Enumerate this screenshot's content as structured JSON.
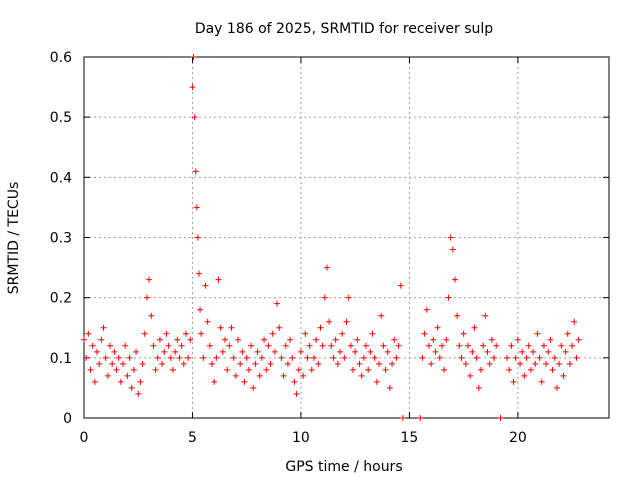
{
  "chart_data": {
    "type": "scatter",
    "title": "Day 186 of 2025, SRMTID for receiver sulp",
    "xlabel": "GPS time / hours",
    "ylabel": "SRMTID / TECUs",
    "xlim": [
      0,
      24.2
    ],
    "ylim": [
      0,
      0.6
    ],
    "xticks": [
      0,
      5,
      10,
      15,
      20
    ],
    "xtick_labels": [
      "0",
      "5",
      "10",
      "15",
      "20"
    ],
    "yticks": [
      0,
      0.1,
      0.2,
      0.3,
      0.4,
      0.5,
      0.6
    ],
    "ytick_labels": [
      "0",
      "0.1",
      "0.2",
      "0.3",
      "0.4",
      "0.5",
      "0.6"
    ],
    "grid": true,
    "marker": "+",
    "color": "#ff0000",
    "series": [
      {
        "name": "SRMTID",
        "points": [
          [
            0.0,
            0.13
          ],
          [
            0.1,
            0.1
          ],
          [
            0.2,
            0.14
          ],
          [
            0.3,
            0.08
          ],
          [
            0.4,
            0.12
          ],
          [
            0.5,
            0.06
          ],
          [
            0.6,
            0.11
          ],
          [
            0.7,
            0.09
          ],
          [
            0.8,
            0.13
          ],
          [
            0.9,
            0.15
          ],
          [
            1.0,
            0.1
          ],
          [
            1.1,
            0.07
          ],
          [
            1.2,
            0.12
          ],
          [
            1.3,
            0.09
          ],
          [
            1.4,
            0.11
          ],
          [
            1.5,
            0.08
          ],
          [
            1.6,
            0.1
          ],
          [
            1.7,
            0.06
          ],
          [
            1.8,
            0.09
          ],
          [
            1.9,
            0.12
          ],
          [
            2.0,
            0.07
          ],
          [
            2.1,
            0.1
          ],
          [
            2.2,
            0.05
          ],
          [
            2.3,
            0.08
          ],
          [
            2.4,
            0.11
          ],
          [
            2.5,
            0.04
          ],
          [
            2.6,
            0.06
          ],
          [
            2.7,
            0.09
          ],
          [
            2.8,
            0.14
          ],
          [
            2.9,
            0.2
          ],
          [
            3.0,
            0.23
          ],
          [
            3.1,
            0.17
          ],
          [
            3.2,
            0.12
          ],
          [
            3.3,
            0.08
          ],
          [
            3.4,
            0.1
          ],
          [
            3.5,
            0.13
          ],
          [
            3.6,
            0.09
          ],
          [
            3.7,
            0.11
          ],
          [
            3.8,
            0.14
          ],
          [
            3.9,
            0.12
          ],
          [
            4.0,
            0.1
          ],
          [
            4.1,
            0.08
          ],
          [
            4.2,
            0.11
          ],
          [
            4.3,
            0.13
          ],
          [
            4.4,
            0.1
          ],
          [
            4.5,
            0.12
          ],
          [
            4.6,
            0.09
          ],
          [
            4.7,
            0.14
          ],
          [
            4.8,
            0.1
          ],
          [
            4.9,
            0.13
          ],
          [
            5.0,
            0.55
          ],
          [
            5.05,
            0.6
          ],
          [
            5.1,
            0.5
          ],
          [
            5.15,
            0.41
          ],
          [
            5.2,
            0.35
          ],
          [
            5.25,
            0.3
          ],
          [
            5.3,
            0.24
          ],
          [
            5.35,
            0.18
          ],
          [
            5.4,
            0.14
          ],
          [
            5.5,
            0.1
          ],
          [
            5.6,
            0.22
          ],
          [
            5.7,
            0.16
          ],
          [
            5.8,
            0.12
          ],
          [
            5.9,
            0.09
          ],
          [
            6.0,
            0.06
          ],
          [
            6.1,
            0.1
          ],
          [
            6.2,
            0.23
          ],
          [
            6.3,
            0.15
          ],
          [
            6.4,
            0.11
          ],
          [
            6.5,
            0.13
          ],
          [
            6.6,
            0.08
          ],
          [
            6.7,
            0.12
          ],
          [
            6.8,
            0.15
          ],
          [
            6.9,
            0.1
          ],
          [
            7.0,
            0.07
          ],
          [
            7.1,
            0.13
          ],
          [
            7.2,
            0.09
          ],
          [
            7.3,
            0.11
          ],
          [
            7.4,
            0.06
          ],
          [
            7.5,
            0.1
          ],
          [
            7.6,
            0.08
          ],
          [
            7.7,
            0.12
          ],
          [
            7.8,
            0.05
          ],
          [
            7.9,
            0.09
          ],
          [
            8.0,
            0.11
          ],
          [
            8.1,
            0.07
          ],
          [
            8.2,
            0.1
          ],
          [
            8.3,
            0.13
          ],
          [
            8.4,
            0.08
          ],
          [
            8.5,
            0.12
          ],
          [
            8.6,
            0.09
          ],
          [
            8.7,
            0.14
          ],
          [
            8.8,
            0.11
          ],
          [
            8.9,
            0.19
          ],
          [
            9.0,
            0.15
          ],
          [
            9.1,
            0.1
          ],
          [
            9.2,
            0.07
          ],
          [
            9.3,
            0.12
          ],
          [
            9.4,
            0.09
          ],
          [
            9.5,
            0.13
          ],
          [
            9.6,
            0.1
          ],
          [
            9.7,
            0.06
          ],
          [
            9.8,
            0.04
          ],
          [
            9.9,
            0.08
          ],
          [
            10.0,
            0.11
          ],
          [
            10.1,
            0.07
          ],
          [
            10.2,
            0.14
          ],
          [
            10.3,
            0.1
          ],
          [
            10.4,
            0.12
          ],
          [
            10.5,
            0.08
          ],
          [
            10.6,
            0.1
          ],
          [
            10.7,
            0.13
          ],
          [
            10.8,
            0.09
          ],
          [
            10.9,
            0.15
          ],
          [
            11.0,
            0.12
          ],
          [
            11.1,
            0.2
          ],
          [
            11.2,
            0.25
          ],
          [
            11.3,
            0.16
          ],
          [
            11.4,
            0.12
          ],
          [
            11.5,
            0.1
          ],
          [
            11.6,
            0.13
          ],
          [
            11.7,
            0.09
          ],
          [
            11.8,
            0.11
          ],
          [
            11.9,
            0.14
          ],
          [
            12.0,
            0.1
          ],
          [
            12.1,
            0.16
          ],
          [
            12.2,
            0.2
          ],
          [
            12.3,
            0.12
          ],
          [
            12.4,
            0.08
          ],
          [
            12.5,
            0.11
          ],
          [
            12.6,
            0.13
          ],
          [
            12.7,
            0.09
          ],
          [
            12.8,
            0.07
          ],
          [
            12.9,
            0.1
          ],
          [
            13.0,
            0.12
          ],
          [
            13.1,
            0.08
          ],
          [
            13.2,
            0.11
          ],
          [
            13.3,
            0.14
          ],
          [
            13.4,
            0.1
          ],
          [
            13.5,
            0.06
          ],
          [
            13.6,
            0.09
          ],
          [
            13.7,
            0.17
          ],
          [
            13.8,
            0.12
          ],
          [
            13.9,
            0.08
          ],
          [
            14.0,
            0.11
          ],
          [
            14.1,
            0.05
          ],
          [
            14.2,
            0.09
          ],
          [
            14.3,
            0.13
          ],
          [
            14.4,
            0.1
          ],
          [
            14.5,
            0.12
          ],
          [
            14.6,
            0.22
          ],
          [
            14.7,
            0.0
          ],
          [
            15.5,
            0.0
          ],
          [
            15.6,
            0.1
          ],
          [
            15.7,
            0.14
          ],
          [
            15.8,
            0.18
          ],
          [
            15.9,
            0.12
          ],
          [
            16.0,
            0.09
          ],
          [
            16.1,
            0.13
          ],
          [
            16.2,
            0.11
          ],
          [
            16.3,
            0.15
          ],
          [
            16.4,
            0.1
          ],
          [
            16.5,
            0.12
          ],
          [
            16.6,
            0.08
          ],
          [
            16.7,
            0.13
          ],
          [
            16.8,
            0.2
          ],
          [
            16.9,
            0.3
          ],
          [
            17.0,
            0.28
          ],
          [
            17.1,
            0.23
          ],
          [
            17.2,
            0.17
          ],
          [
            17.3,
            0.12
          ],
          [
            17.4,
            0.1
          ],
          [
            17.5,
            0.14
          ],
          [
            17.6,
            0.09
          ],
          [
            17.7,
            0.12
          ],
          [
            17.8,
            0.07
          ],
          [
            17.9,
            0.11
          ],
          [
            18.0,
            0.15
          ],
          [
            18.1,
            0.1
          ],
          [
            18.2,
            0.05
          ],
          [
            18.3,
            0.08
          ],
          [
            18.4,
            0.12
          ],
          [
            18.5,
            0.17
          ],
          [
            18.6,
            0.11
          ],
          [
            18.7,
            0.09
          ],
          [
            18.8,
            0.13
          ],
          [
            18.9,
            0.1
          ],
          [
            19.0,
            0.12
          ],
          [
            19.2,
            0.0
          ],
          [
            19.5,
            0.1
          ],
          [
            19.6,
            0.08
          ],
          [
            19.7,
            0.12
          ],
          [
            19.8,
            0.06
          ],
          [
            19.9,
            0.1
          ],
          [
            20.0,
            0.13
          ],
          [
            20.1,
            0.09
          ],
          [
            20.2,
            0.11
          ],
          [
            20.3,
            0.07
          ],
          [
            20.4,
            0.1
          ],
          [
            20.5,
            0.12
          ],
          [
            20.6,
            0.08
          ],
          [
            20.7,
            0.11
          ],
          [
            20.8,
            0.09
          ],
          [
            20.9,
            0.14
          ],
          [
            21.0,
            0.1
          ],
          [
            21.1,
            0.06
          ],
          [
            21.2,
            0.12
          ],
          [
            21.3,
            0.09
          ],
          [
            21.4,
            0.11
          ],
          [
            21.5,
            0.13
          ],
          [
            21.6,
            0.08
          ],
          [
            21.7,
            0.1
          ],
          [
            21.8,
            0.05
          ],
          [
            21.9,
            0.09
          ],
          [
            22.0,
            0.12
          ],
          [
            22.1,
            0.07
          ],
          [
            22.2,
            0.11
          ],
          [
            22.3,
            0.14
          ],
          [
            22.4,
            0.09
          ],
          [
            22.5,
            0.12
          ],
          [
            22.6,
            0.16
          ],
          [
            22.7,
            0.1
          ],
          [
            22.8,
            0.13
          ]
        ]
      }
    ]
  }
}
